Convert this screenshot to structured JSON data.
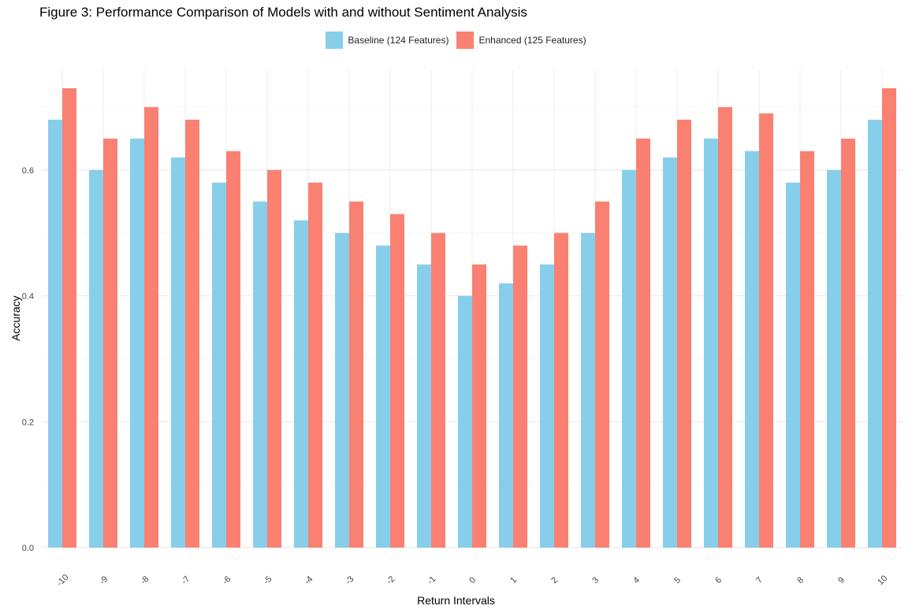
{
  "chart_data": {
    "type": "bar",
    "title": "Figure 3: Performance Comparison of Models with and without Sentiment Analysis",
    "xlabel": "Return Intervals",
    "ylabel": "Accuracy",
    "categories": [
      "-10",
      "-9",
      "-8",
      "-7",
      "-6",
      "-5",
      "-4",
      "-3",
      "-2",
      "-1",
      "0",
      "1",
      "2",
      "3",
      "4",
      "5",
      "6",
      "7",
      "8",
      "9",
      "10"
    ],
    "series": [
      {
        "name": "Baseline (124 Features)",
        "color": "#87CEEB",
        "values": [
          0.68,
          0.6,
          0.65,
          0.62,
          0.58,
          0.55,
          0.52,
          0.5,
          0.48,
          0.45,
          0.4,
          0.42,
          0.45,
          0.5,
          0.6,
          0.62,
          0.65,
          0.63,
          0.58,
          0.6,
          0.68
        ]
      },
      {
        "name": "Enhanced (125 Features)",
        "color": "#FA8072",
        "values": [
          0.73,
          0.65,
          0.7,
          0.68,
          0.63,
          0.6,
          0.58,
          0.55,
          0.53,
          0.5,
          0.45,
          0.48,
          0.5,
          0.55,
          0.65,
          0.68,
          0.7,
          0.69,
          0.63,
          0.65,
          0.73
        ]
      }
    ],
    "ylim": [
      0,
      0.76
    ],
    "yticks": [
      "0.0",
      "0.2",
      "0.4",
      "0.6"
    ],
    "ytick_values": [
      0.0,
      0.2,
      0.4,
      0.6
    ],
    "grid": true,
    "legend_position": "top-center"
  }
}
